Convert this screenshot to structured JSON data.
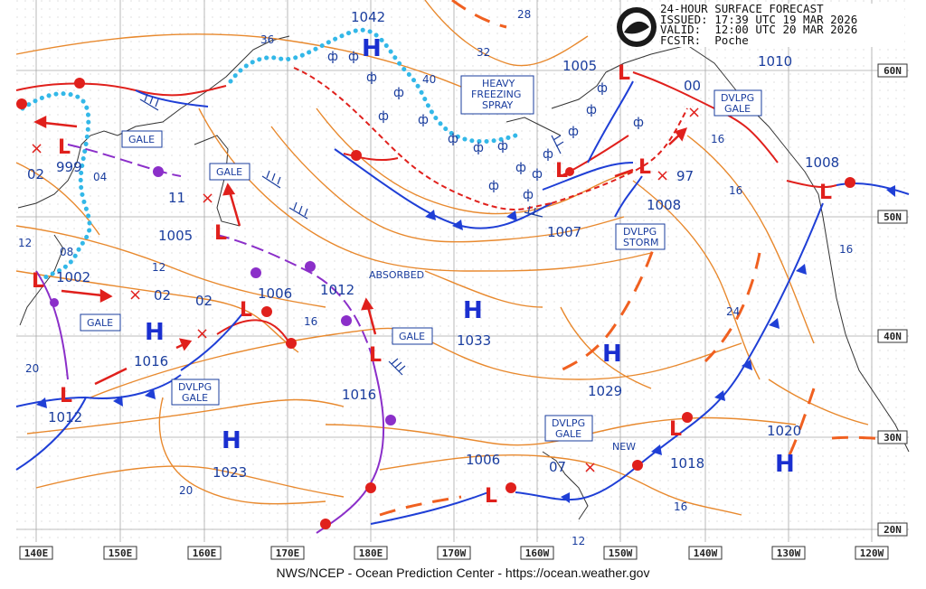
{
  "header": {
    "title": "24-HOUR SURFACE FORECAST",
    "issued": "ISSUED: 17:39 UTC 19 MAR 2026",
    "valid": "VALID:  12:00 UTC 20 MAR 2026",
    "forecaster": "FCSTR:  Poche"
  },
  "credit": "NWS/NCEP - Ocean Prediction Center - https://ocean.weather.gov",
  "axes": {
    "longitudes": [
      "140E",
      "150E",
      "160E",
      "170E",
      "180E",
      "170W",
      "160W",
      "150W",
      "140W",
      "130W",
      "120W"
    ],
    "latitudes": [
      "60N",
      "50N",
      "40N",
      "30N",
      "20N"
    ]
  },
  "high_centers": [
    {
      "label": "H",
      "pressure": "1042"
    },
    {
      "label": "H",
      "pressure": "1033"
    },
    {
      "label": "H",
      "pressure": "1029"
    },
    {
      "label": "H",
      "pressure": "1023"
    },
    {
      "label": "H",
      "pressure": "1020"
    },
    {
      "label": "H",
      "pressure": "1016"
    }
  ],
  "pressure_labels": [
    "1005",
    "1010",
    "00",
    "97",
    "1008",
    "1007",
    "1008",
    "999",
    "02",
    "11",
    "1005",
    "1002",
    "02",
    "02",
    "1006",
    "1012",
    "1016",
    "1012",
    "1006",
    "07",
    "1018",
    "1016"
  ],
  "isobar_labels": [
    "28",
    "36",
    "32",
    "40",
    "04",
    "08",
    "12",
    "12",
    "16",
    "16",
    "24",
    "16",
    "20",
    "20",
    "12",
    "16",
    "16"
  ],
  "warnings": {
    "gale": "GALE",
    "dvlpg_gale": "DVLPG\nGALE",
    "dvlpg_storm": "DVLPG\nSTORM",
    "heavy_freezing_spray": "HEAVY\nFREEZING\nSPRAY"
  },
  "annotations": {
    "absorbed": "ABSORBED",
    "new": "NEW"
  },
  "colors": {
    "isobar": "#e8892e",
    "cold_front": "#1f3fd6",
    "warm_front": "#e0201c",
    "occluded": "#8b2fc9",
    "ice_edge": "#33b8e8",
    "grid": "#bdbdbd",
    "low_symbol": "#e0201c",
    "coast": "#333333"
  }
}
